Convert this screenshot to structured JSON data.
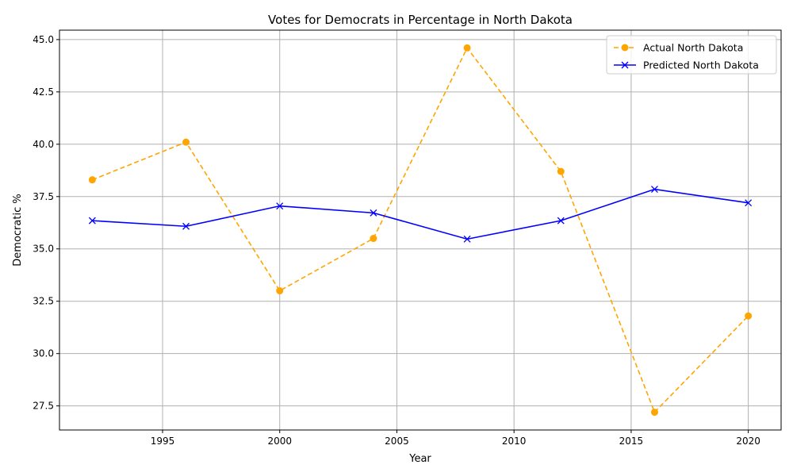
{
  "chart_data": {
    "type": "line",
    "title": "Votes for Democrats in Percentage in North Dakota",
    "xlabel": "Year",
    "ylabel": "Democratic %",
    "xlim": [
      1990.6,
      2021.4
    ],
    "ylim": [
      26.35,
      45.45
    ],
    "x_ticks": [
      1995,
      2000,
      2005,
      2010,
      2015,
      2020
    ],
    "y_ticks": [
      27.5,
      30.0,
      32.5,
      35.0,
      37.5,
      40.0,
      42.5,
      45.0
    ],
    "x_tick_labels": [
      "1995",
      "2000",
      "2005",
      "2010",
      "2015",
      "2020"
    ],
    "y_tick_labels": [
      "27.5",
      "30.0",
      "32.5",
      "35.0",
      "37.5",
      "40.0",
      "42.5",
      "45.0"
    ],
    "grid": true,
    "legend_position": "top-right",
    "x": [
      1992,
      1996,
      2000,
      2004,
      2008,
      2012,
      2016,
      2020
    ],
    "series": [
      {
        "name": "Actual North Dakota",
        "values": [
          38.3,
          40.1,
          33.0,
          35.5,
          44.6,
          38.7,
          27.2,
          31.8
        ],
        "color": "#ffa500",
        "line_style": "dashed",
        "marker": "circle"
      },
      {
        "name": "Predicted North Dakota",
        "values": [
          36.35,
          36.08,
          37.05,
          36.72,
          35.47,
          36.35,
          37.85,
          37.2
        ],
        "color": "#0000ff",
        "line_style": "solid",
        "marker": "x"
      }
    ]
  }
}
